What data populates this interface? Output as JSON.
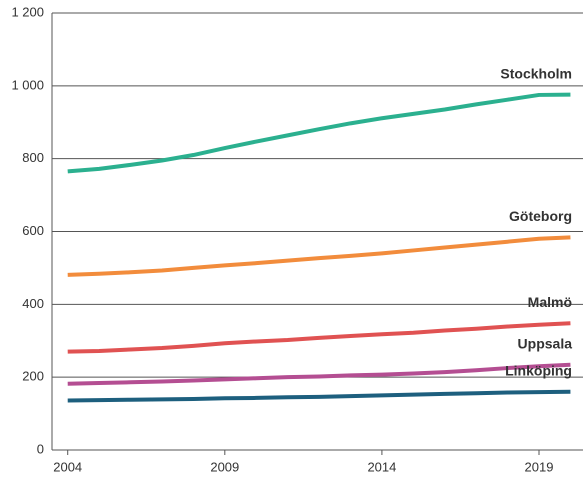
{
  "chart_data": {
    "type": "line",
    "x": [
      2004,
      2005,
      2006,
      2007,
      2008,
      2009,
      2010,
      2011,
      2012,
      2013,
      2014,
      2015,
      2016,
      2017,
      2018,
      2019,
      2020
    ],
    "series": [
      {
        "name": "Stockholm",
        "color": "#2bb08f",
        "values": [
          765,
          772,
          783,
          795,
          810,
          829,
          847,
          864,
          881,
          897,
          911,
          923,
          935,
          949,
          962,
          975,
          976
        ]
      },
      {
        "name": "Göteborg",
        "color": "#f28c3c",
        "values": [
          481,
          484,
          488,
          493,
          500,
          507,
          513,
          520,
          527,
          533,
          540,
          548,
          556,
          564,
          572,
          580,
          584
        ]
      },
      {
        "name": "Malmö",
        "color": "#e05252",
        "values": [
          270,
          272,
          276,
          280,
          286,
          293,
          298,
          302,
          308,
          313,
          318,
          322,
          328,
          333,
          339,
          344,
          348
        ]
      },
      {
        "name": "Uppsala",
        "color": "#b44e92",
        "values": [
          182,
          184,
          186,
          188,
          191,
          194,
          197,
          200,
          202,
          205,
          207,
          210,
          214,
          219,
          225,
          230,
          234
        ]
      },
      {
        "name": "Linköping",
        "color": "#1d5f7e",
        "values": [
          136,
          137,
          138,
          139,
          140,
          142,
          143,
          145,
          146,
          148,
          150,
          152,
          154,
          156,
          158,
          159,
          160
        ]
      }
    ],
    "xlim": [
      2003.5,
      2020.4
    ],
    "xticks": [
      2004,
      2009,
      2014,
      2019
    ],
    "ylim": [
      0,
      1200
    ],
    "yticks": [
      0,
      200,
      400,
      600,
      800,
      {
        "value": 1000,
        "label": "1 000"
      },
      {
        "value": 1200,
        "label": "1 200"
      }
    ],
    "grid": true
  }
}
